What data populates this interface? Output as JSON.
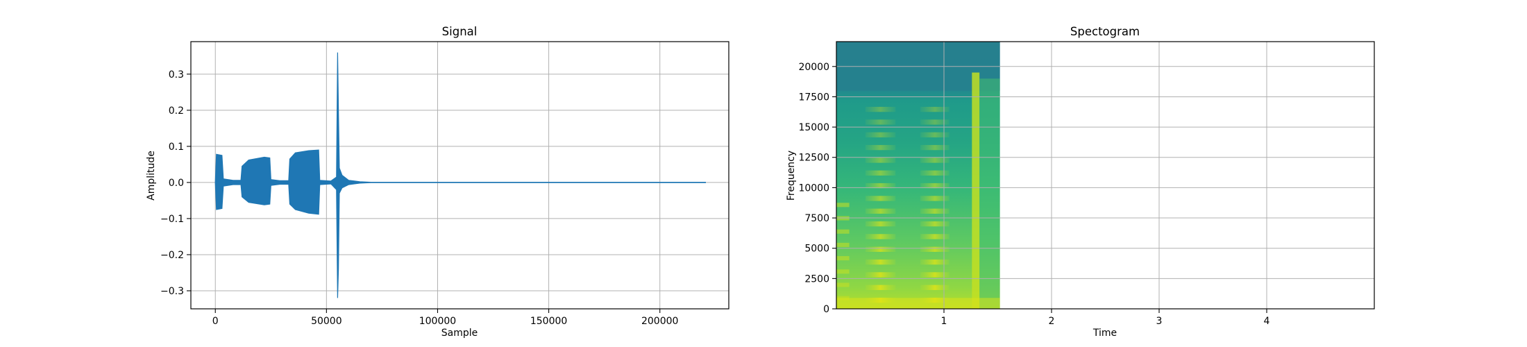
{
  "chart_data": [
    {
      "type": "line",
      "title": "Signal",
      "xlabel": "Sample",
      "ylabel": "Amplitude",
      "xlim": [
        -11000,
        231000
      ],
      "ylim": [
        -0.35,
        0.39
      ],
      "grid": true,
      "color": "#1f77b4",
      "xticks": [
        0,
        50000,
        100000,
        150000,
        200000
      ],
      "xtick_labels": [
        "0",
        "50000",
        "100000",
        "150000",
        "200000"
      ],
      "yticks": [
        -0.3,
        -0.2,
        -0.1,
        0.0,
        0.1,
        0.2,
        0.3
      ],
      "ytick_labels": [
        "−0.3",
        "−0.2",
        "−0.1",
        "0.0",
        "0.1",
        "0.2",
        "0.3"
      ],
      "envelope": [
        {
          "x": 0,
          "lo": 0.0,
          "hi": 0.0
        },
        {
          "x": 500,
          "lo": -0.075,
          "hi": 0.078
        },
        {
          "x": 3000,
          "lo": -0.072,
          "hi": 0.075
        },
        {
          "x": 3600,
          "lo": -0.01,
          "hi": 0.01
        },
        {
          "x": 8000,
          "lo": -0.006,
          "hi": 0.006
        },
        {
          "x": 11500,
          "lo": -0.006,
          "hi": 0.006
        },
        {
          "x": 12000,
          "lo": -0.04,
          "hi": 0.045
        },
        {
          "x": 15000,
          "lo": -0.055,
          "hi": 0.062
        },
        {
          "x": 22000,
          "lo": -0.062,
          "hi": 0.07
        },
        {
          "x": 24500,
          "lo": -0.06,
          "hi": 0.068
        },
        {
          "x": 25000,
          "lo": -0.008,
          "hi": 0.008
        },
        {
          "x": 29000,
          "lo": -0.005,
          "hi": 0.005
        },
        {
          "x": 33000,
          "lo": -0.005,
          "hi": 0.005
        },
        {
          "x": 33500,
          "lo": -0.06,
          "hi": 0.065
        },
        {
          "x": 36000,
          "lo": -0.075,
          "hi": 0.082
        },
        {
          "x": 42000,
          "lo": -0.085,
          "hi": 0.088
        },
        {
          "x": 46500,
          "lo": -0.088,
          "hi": 0.09
        },
        {
          "x": 47000,
          "lo": -0.006,
          "hi": 0.006
        },
        {
          "x": 52000,
          "lo": -0.004,
          "hi": 0.004
        },
        {
          "x": 54500,
          "lo": -0.02,
          "hi": 0.015
        },
        {
          "x": 55000,
          "lo": -0.32,
          "hi": 0.36
        },
        {
          "x": 55400,
          "lo": -0.24,
          "hi": 0.2
        },
        {
          "x": 55800,
          "lo": -0.03,
          "hi": 0.04
        },
        {
          "x": 57000,
          "lo": -0.015,
          "hi": 0.02
        },
        {
          "x": 60000,
          "lo": -0.006,
          "hi": 0.006
        },
        {
          "x": 65000,
          "lo": -0.002,
          "hi": 0.002
        },
        {
          "x": 70000,
          "lo": -0.0005,
          "hi": 0.0005
        },
        {
          "x": 220500,
          "lo": -0.0005,
          "hi": 0.0005
        }
      ]
    },
    {
      "type": "heatmap",
      "title": "Spectogram",
      "xlabel": "Time",
      "ylabel": "Frequency",
      "xlim": [
        0,
        5.0
      ],
      "ylim": [
        0,
        22050
      ],
      "grid": true,
      "colormap": "viridis",
      "data_extent": {
        "t_max": 1.52,
        "f_max": 22050
      },
      "xticks": [
        1,
        2,
        3,
        4
      ],
      "xtick_labels": [
        "1",
        "2",
        "3",
        "4"
      ],
      "yticks": [
        0,
        2500,
        5000,
        7500,
        10000,
        12500,
        15000,
        17500,
        20000
      ],
      "ytick_labels": [
        "0",
        "2500",
        "5000",
        "7500",
        "10000",
        "12500",
        "15000",
        "17500",
        "20000"
      ]
    }
  ]
}
